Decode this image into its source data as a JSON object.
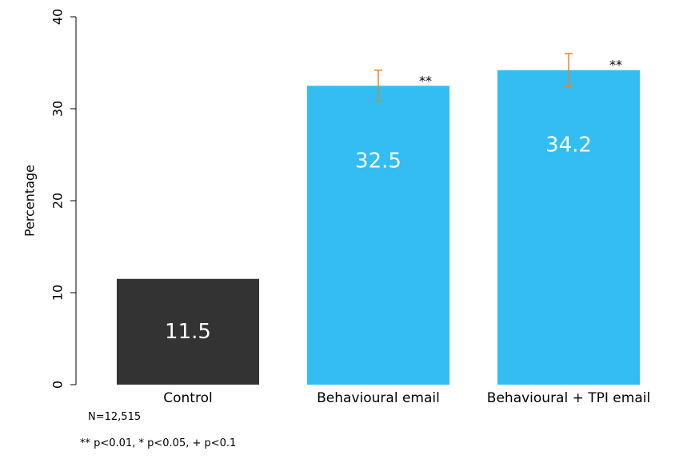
{
  "chart_data": {
    "type": "bar",
    "title": "",
    "xlabel": "",
    "ylabel": "Percentage",
    "ylim": [
      0,
      40
    ],
    "yticks": [
      "0",
      "10",
      "20",
      "30",
      "40"
    ],
    "categories": [
      "Control",
      "Behavioural email",
      "Behavioural + TPI email"
    ],
    "values": [
      11.5,
      32.5,
      34.2
    ],
    "value_labels": [
      "11.5",
      "32.5",
      "34.2"
    ],
    "error_bars": [
      null,
      [
        30.8,
        34.2
      ],
      [
        32.4,
        36.0
      ]
    ],
    "significance": [
      "",
      "**",
      "**"
    ],
    "bar_colors": [
      "#333333",
      "#33bdf2",
      "#33bdf2"
    ],
    "error_color": "#e8822a",
    "grid": false
  },
  "notes": {
    "sample_size": "N=12,515",
    "significance_legend": "** p<0.01, * p<0.05, + p<0.1"
  }
}
